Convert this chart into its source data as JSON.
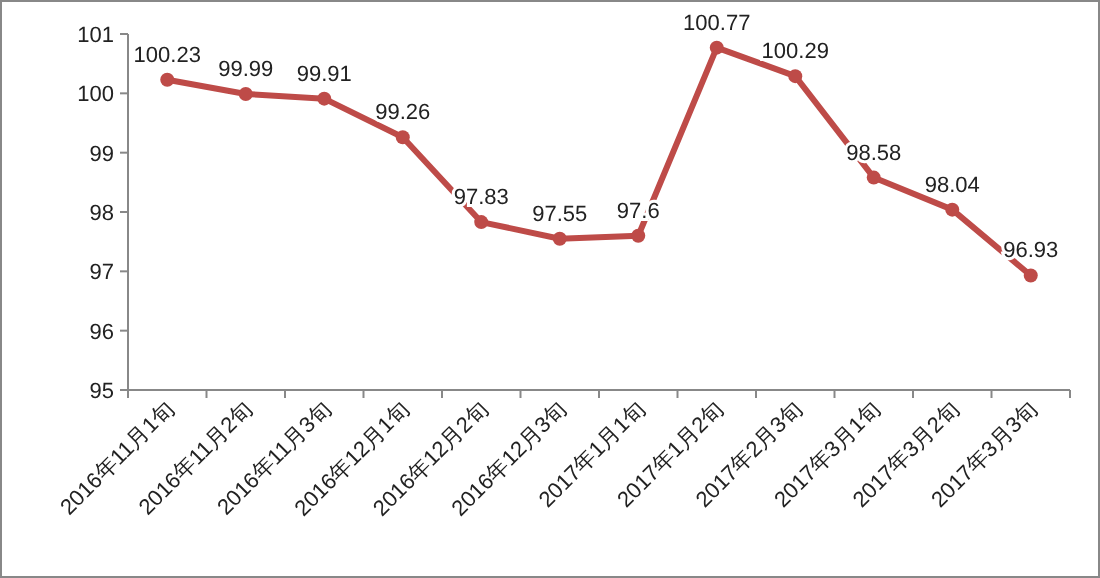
{
  "chart_data": {
    "type": "line",
    "categories": [
      "2016年11月1旬",
      "2016年11月2旬",
      "2016年11月3旬",
      "2016年12月1旬",
      "2016年12月2旬",
      "2016年12月3旬",
      "2017年1月1旬",
      "2017年1月2旬",
      "2017年2月3旬",
      "2017年3月1旬",
      "2017年3月2旬",
      "2017年3月3旬"
    ],
    "series": [
      {
        "color": "#be4b48",
        "values": [
          100.23,
          99.99,
          99.91,
          99.26,
          97.83,
          97.55,
          97.6,
          100.77,
          100.29,
          98.58,
          98.04,
          96.93
        ]
      }
    ],
    "ylim": [
      95,
      101
    ],
    "yticks": [
      95,
      96,
      97,
      98,
      99,
      100,
      101
    ],
    "data_labels": true,
    "marker": "circle",
    "line_style": "solid",
    "grid": false
  }
}
